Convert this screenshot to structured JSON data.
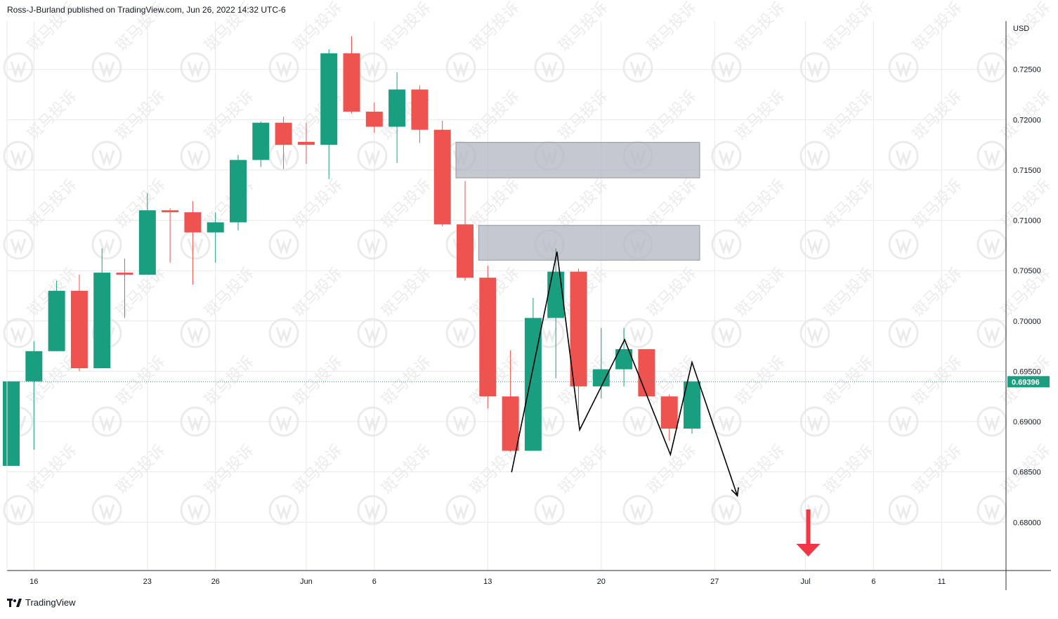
{
  "header": {
    "publisher_line": "Ross-J-Burland published on TradingView.com, Jun 26, 2022 14:32 UTC-6"
  },
  "footer": {
    "brand": "TradingView"
  },
  "watermark": {
    "text": "斑马投诉"
  },
  "colors": {
    "up": "#26a69a",
    "up_body": "#1a9e80",
    "down": "#ef5350",
    "grid": "#e6e8ec",
    "zone": "#b2b5be",
    "pattern_line": "#000000",
    "last_price_badge": "#1a9e80",
    "arrow": "#f23645"
  },
  "chart_data": {
    "type": "candlestick",
    "currency_label": "USD",
    "y_ticks": [
      "0.72500",
      "0.72000",
      "0.71500",
      "0.71000",
      "0.70500",
      "0.70000",
      "0.69500",
      "0.69000",
      "0.68500",
      "0.68000"
    ],
    "ylim": [
      0.6752,
      0.7298
    ],
    "last_price": 0.69396,
    "last_price_label": "0.69396",
    "x_labels": [
      {
        "label": "16",
        "index": 1
      },
      {
        "label": "23",
        "index": 6
      },
      {
        "label": "26",
        "index": 9
      },
      {
        "label": "Jun",
        "index": 13
      },
      {
        "label": "6",
        "index": 16
      },
      {
        "label": "13",
        "index": 21
      },
      {
        "label": "20",
        "index": 26
      },
      {
        "label": "27",
        "index": 31
      },
      {
        "label": "Jul",
        "index": 35
      },
      {
        "label": "6",
        "index": 38
      },
      {
        "label": "11",
        "index": 41
      }
    ],
    "candles": [
      {
        "i": 0,
        "o": 0.6856,
        "h": 0.694,
        "l": 0.6856,
        "c": 0.694
      },
      {
        "i": 1,
        "o": 0.694,
        "h": 0.698,
        "l": 0.6872,
        "c": 0.697
      },
      {
        "i": 2,
        "o": 0.697,
        "h": 0.704,
        "l": 0.697,
        "c": 0.703
      },
      {
        "i": 3,
        "o": 0.703,
        "h": 0.7046,
        "l": 0.695,
        "c": 0.6953
      },
      {
        "i": 4,
        "o": 0.6953,
        "h": 0.7072,
        "l": 0.6953,
        "c": 0.7048
      },
      {
        "i": 5,
        "o": 0.7048,
        "h": 0.7062,
        "l": 0.7003,
        "c": 0.7046
      },
      {
        "i": 6,
        "o": 0.7046,
        "h": 0.7127,
        "l": 0.7046,
        "c": 0.711
      },
      {
        "i": 7,
        "o": 0.711,
        "h": 0.7112,
        "l": 0.7058,
        "c": 0.7108
      },
      {
        "i": 8,
        "o": 0.7108,
        "h": 0.7119,
        "l": 0.7036,
        "c": 0.7088
      },
      {
        "i": 9,
        "o": 0.7088,
        "h": 0.7108,
        "l": 0.7058,
        "c": 0.7098
      },
      {
        "i": 10,
        "o": 0.7098,
        "h": 0.7165,
        "l": 0.709,
        "c": 0.716
      },
      {
        "i": 11,
        "o": 0.716,
        "h": 0.7198,
        "l": 0.7153,
        "c": 0.7197
      },
      {
        "i": 12,
        "o": 0.7197,
        "h": 0.7203,
        "l": 0.7151,
        "c": 0.7175
      },
      {
        "i": 13,
        "o": 0.7178,
        "h": 0.7197,
        "l": 0.7156,
        "c": 0.7175
      },
      {
        "i": 14,
        "o": 0.7175,
        "h": 0.727,
        "l": 0.7141,
        "c": 0.7266
      },
      {
        "i": 15,
        "o": 0.7266,
        "h": 0.7283,
        "l": 0.7206,
        "c": 0.7208
      },
      {
        "i": 16,
        "o": 0.7208,
        "h": 0.7217,
        "l": 0.7187,
        "c": 0.7193
      },
      {
        "i": 17,
        "o": 0.7193,
        "h": 0.7247,
        "l": 0.7157,
        "c": 0.723
      },
      {
        "i": 18,
        "o": 0.723,
        "h": 0.7234,
        "l": 0.7177,
        "c": 0.719
      },
      {
        "i": 19,
        "o": 0.719,
        "h": 0.7199,
        "l": 0.7094,
        "c": 0.7096
      },
      {
        "i": 20,
        "o": 0.7096,
        "h": 0.7139,
        "l": 0.704,
        "c": 0.7043
      },
      {
        "i": 21,
        "o": 0.7043,
        "h": 0.7055,
        "l": 0.6913,
        "c": 0.6925
      },
      {
        "i": 22,
        "o": 0.6925,
        "h": 0.6971,
        "l": 0.687,
        "c": 0.6871
      },
      {
        "i": 23,
        "o": 0.6871,
        "h": 0.7023,
        "l": 0.6871,
        "c": 0.7003
      },
      {
        "i": 24,
        "o": 0.7003,
        "h": 0.7072,
        "l": 0.6943,
        "c": 0.7049
      },
      {
        "i": 25,
        "o": 0.7049,
        "h": 0.7052,
        "l": 0.69,
        "c": 0.6935
      },
      {
        "i": 26,
        "o": 0.6935,
        "h": 0.6993,
        "l": 0.6923,
        "c": 0.6952
      },
      {
        "i": 27,
        "o": 0.6952,
        "h": 0.6993,
        "l": 0.6935,
        "c": 0.6972
      },
      {
        "i": 28,
        "o": 0.6972,
        "h": 0.6972,
        "l": 0.6925,
        "c": 0.6925
      },
      {
        "i": 29,
        "o": 0.6925,
        "h": 0.6927,
        "l": 0.6881,
        "c": 0.6893
      },
      {
        "i": 30,
        "o": 0.6893,
        "h": 0.694,
        "l": 0.6888,
        "c": 0.694
      }
    ],
    "zones": [
      {
        "from_index": 20,
        "to_index": 30,
        "top": 0.71775,
        "bottom": 0.71422
      },
      {
        "from_index": 21,
        "to_index": 30,
        "top": 0.7095,
        "bottom": 0.70604
      }
    ],
    "pattern_path": [
      {
        "index": 22.05,
        "value": 0.68496
      },
      {
        "index": 24.05,
        "value": 0.70688
      },
      {
        "index": 25.05,
        "value": 0.68918
      },
      {
        "index": 27.03,
        "value": 0.69814
      },
      {
        "index": 29.05,
        "value": 0.68672
      },
      {
        "index": 30.0,
        "value": 0.69589
      },
      {
        "index": 32.0,
        "value": 0.68263
      }
    ],
    "target_arrow": {
      "index": 35.0,
      "from_value": 0.68127,
      "to_value": 0.6766
    }
  }
}
